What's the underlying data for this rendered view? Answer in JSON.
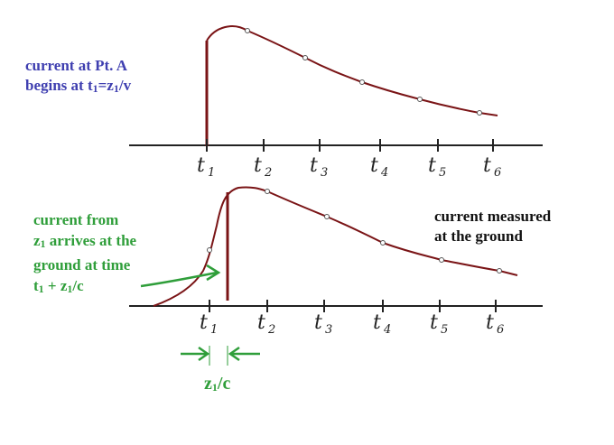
{
  "labels": {
    "pointA_line1": "current at Pt. A",
    "pointA_line2_pre": "begins at t",
    "pointA_sub1": "1",
    "pointA_mid": "=z",
    "pointA_sub2": "1",
    "pointA_post": "/v",
    "arrival_line1": "current from",
    "arrival_line2_pre": "z",
    "arrival_line2_sub": "1",
    "arrival_line2_post": " arrives at the",
    "arrival_line3": "ground at time",
    "arrival_line4_pre": "t",
    "arrival_line4_sub1": "1",
    "arrival_line4_mid": " + z",
    "arrival_line4_sub2": "1",
    "arrival_line4_post": "/c",
    "ground_line1": "current measured",
    "ground_line2": "at the ground",
    "delay_pre": "z",
    "delay_sub": "1",
    "delay_post": "/c"
  },
  "axis_ticks": [
    {
      "base": "t",
      "sub": "1"
    },
    {
      "base": "t",
      "sub": "2"
    },
    {
      "base": "t",
      "sub": "3"
    },
    {
      "base": "t",
      "sub": "4"
    },
    {
      "base": "t",
      "sub": "5"
    },
    {
      "base": "t",
      "sub": "6"
    }
  ],
  "colors": {
    "curve": "#7a1416",
    "axis": "#222222",
    "green": "#2f9e3a",
    "blue": "#3f3fb0"
  }
}
